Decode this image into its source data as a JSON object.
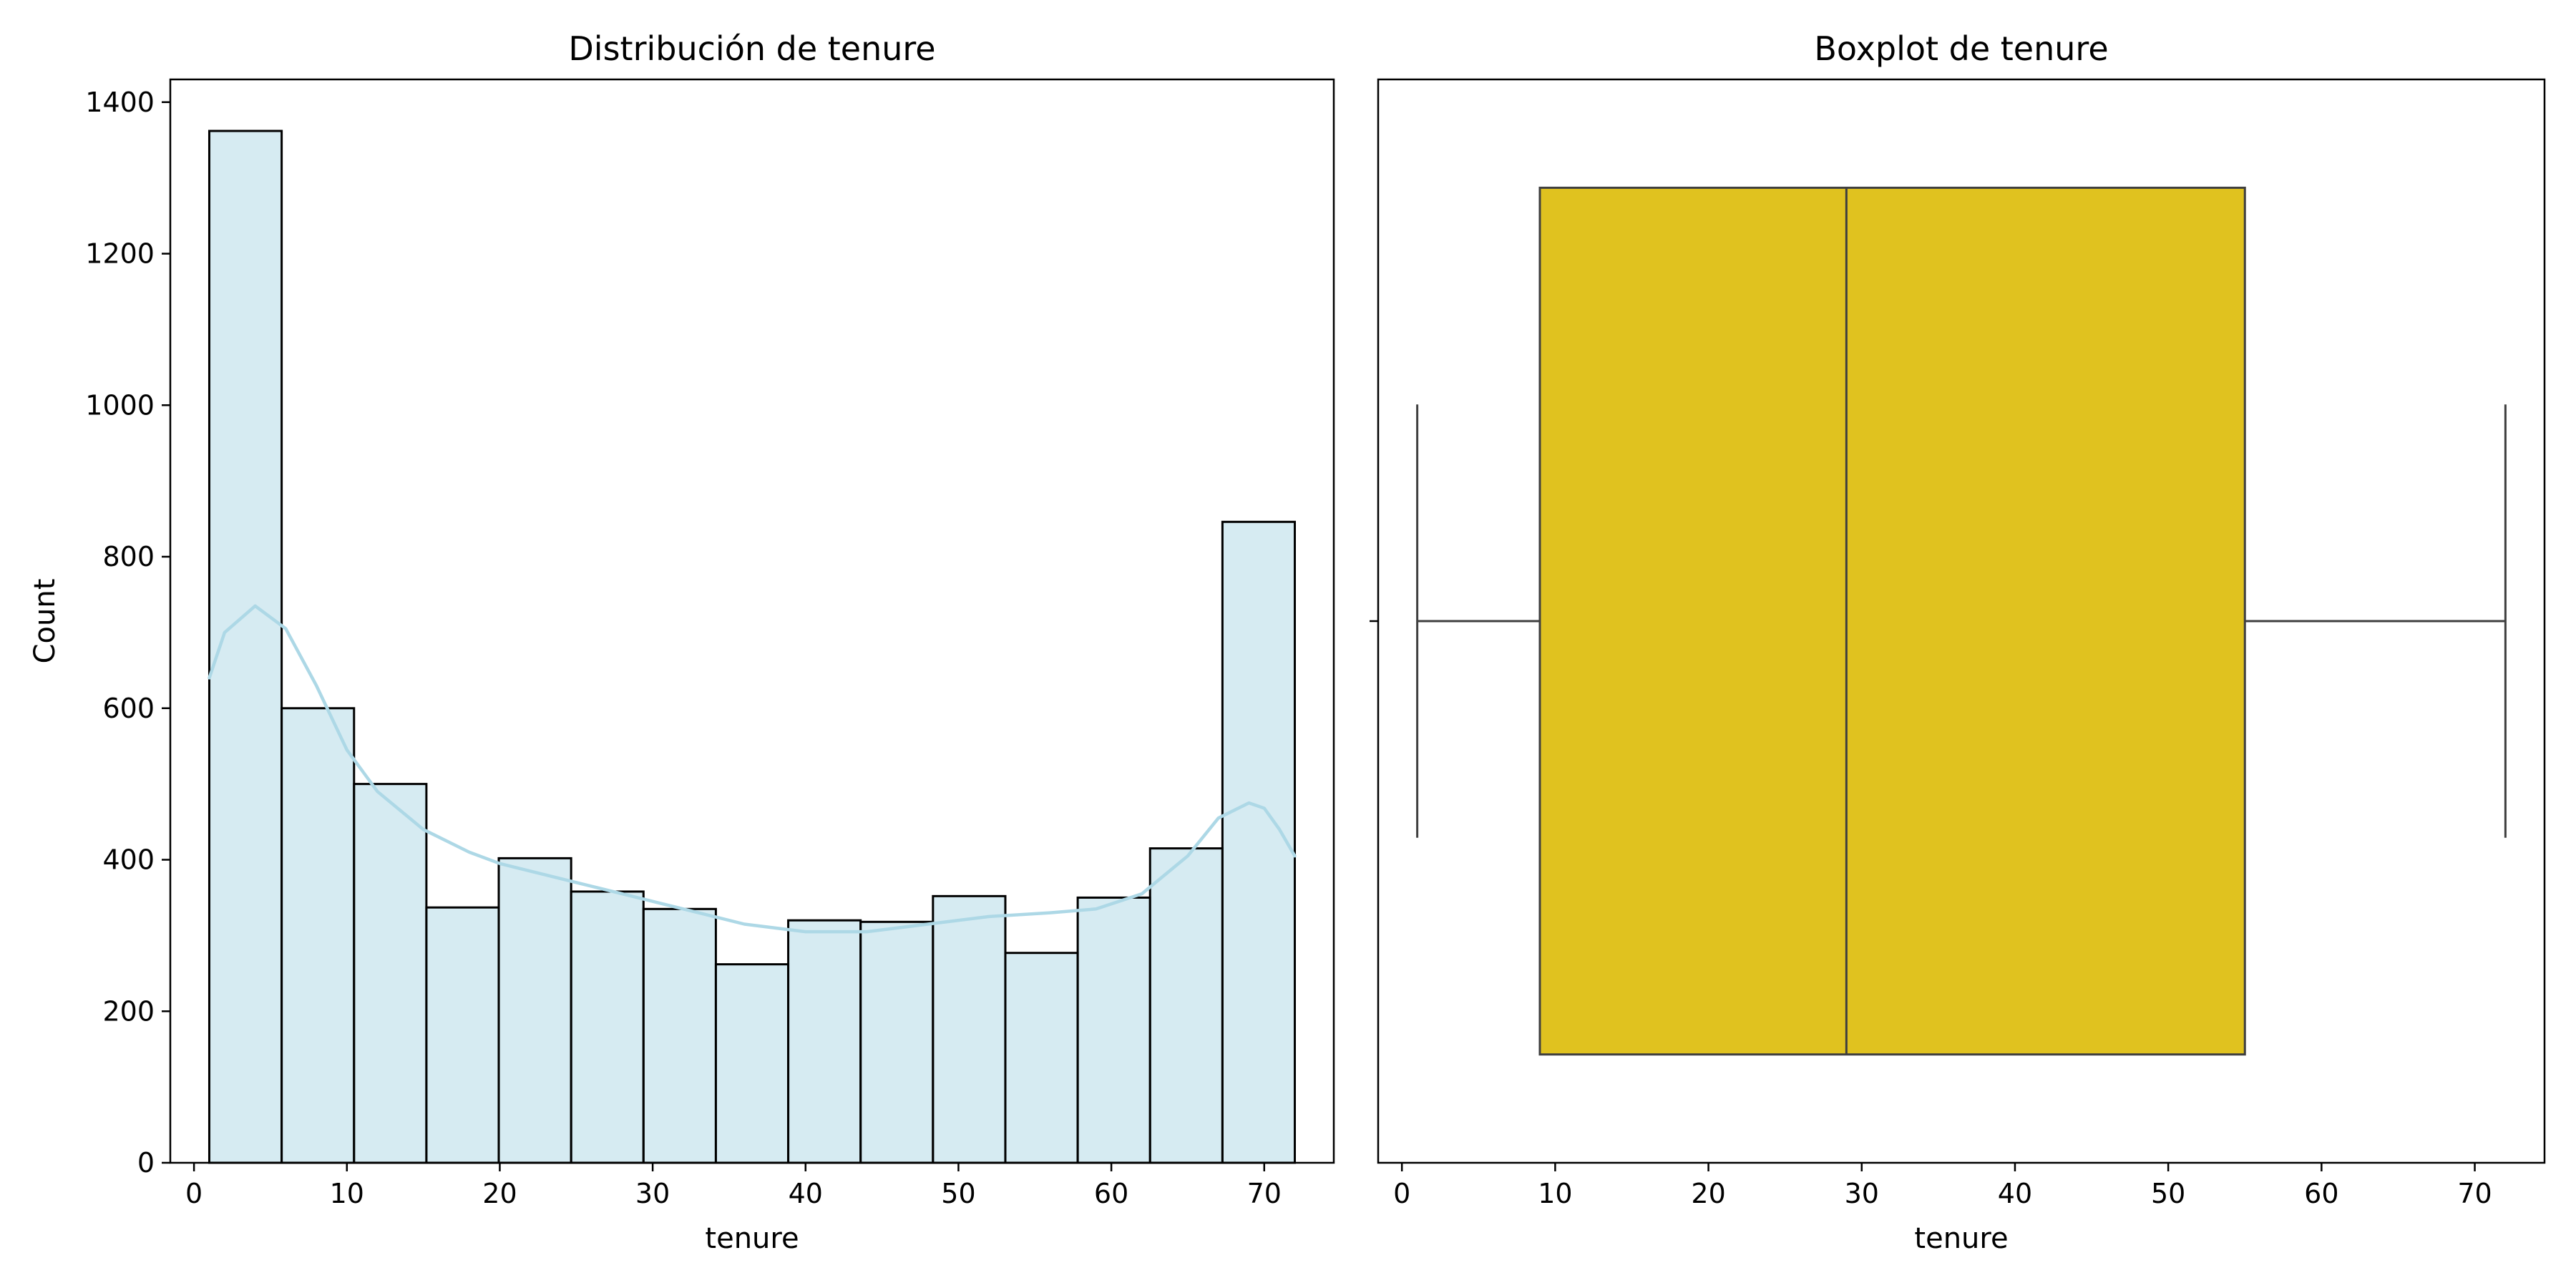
{
  "chart_data": [
    {
      "type": "histogram",
      "title": "Distribución de tenure",
      "xlabel": "tenure",
      "ylabel": "Count",
      "xlim": [
        -1.55,
        74.55
      ],
      "ylim": [
        0,
        1430
      ],
      "xticks": [
        0,
        10,
        20,
        30,
        40,
        50,
        60,
        70
      ],
      "yticks": [
        0,
        200,
        400,
        600,
        800,
        1000,
        1200,
        1400
      ],
      "bin_edges": [
        1,
        5.733,
        10.467,
        15.2,
        19.933,
        24.667,
        29.4,
        34.133,
        38.867,
        43.6,
        48.333,
        53.067,
        57.8,
        62.533,
        67.267,
        72
      ],
      "counts": [
        1362,
        600,
        500,
        337,
        402,
        358,
        335,
        262,
        320,
        318,
        352,
        277,
        350,
        415,
        846
      ],
      "bar_color": "#add8e6",
      "kde": {
        "x": [
          1,
          2,
          4,
          6,
          8,
          10,
          12,
          15,
          18,
          20,
          22,
          25,
          28,
          30,
          33,
          36,
          40,
          44,
          48,
          52,
          56,
          59,
          62,
          65,
          67,
          69,
          70,
          71,
          72
        ],
        "y": [
          640,
          700,
          735,
          705,
          630,
          545,
          490,
          440,
          410,
          395,
          385,
          370,
          355,
          345,
          330,
          315,
          305,
          305,
          315,
          325,
          330,
          335,
          355,
          405,
          455,
          475,
          468,
          440,
          405
        ]
      },
      "kde_color": "#add8e6"
    },
    {
      "type": "boxplot",
      "title": "Boxplot de tenure",
      "xlabel": "tenure",
      "xlim": [
        -1.55,
        74.55
      ],
      "xticks": [
        0,
        10,
        20,
        30,
        40,
        50,
        60,
        70
      ],
      "whisker_low": 1,
      "q1": 9,
      "median": 29,
      "q3": 55,
      "whisker_high": 72,
      "box_color": "#e0c21f"
    }
  ]
}
